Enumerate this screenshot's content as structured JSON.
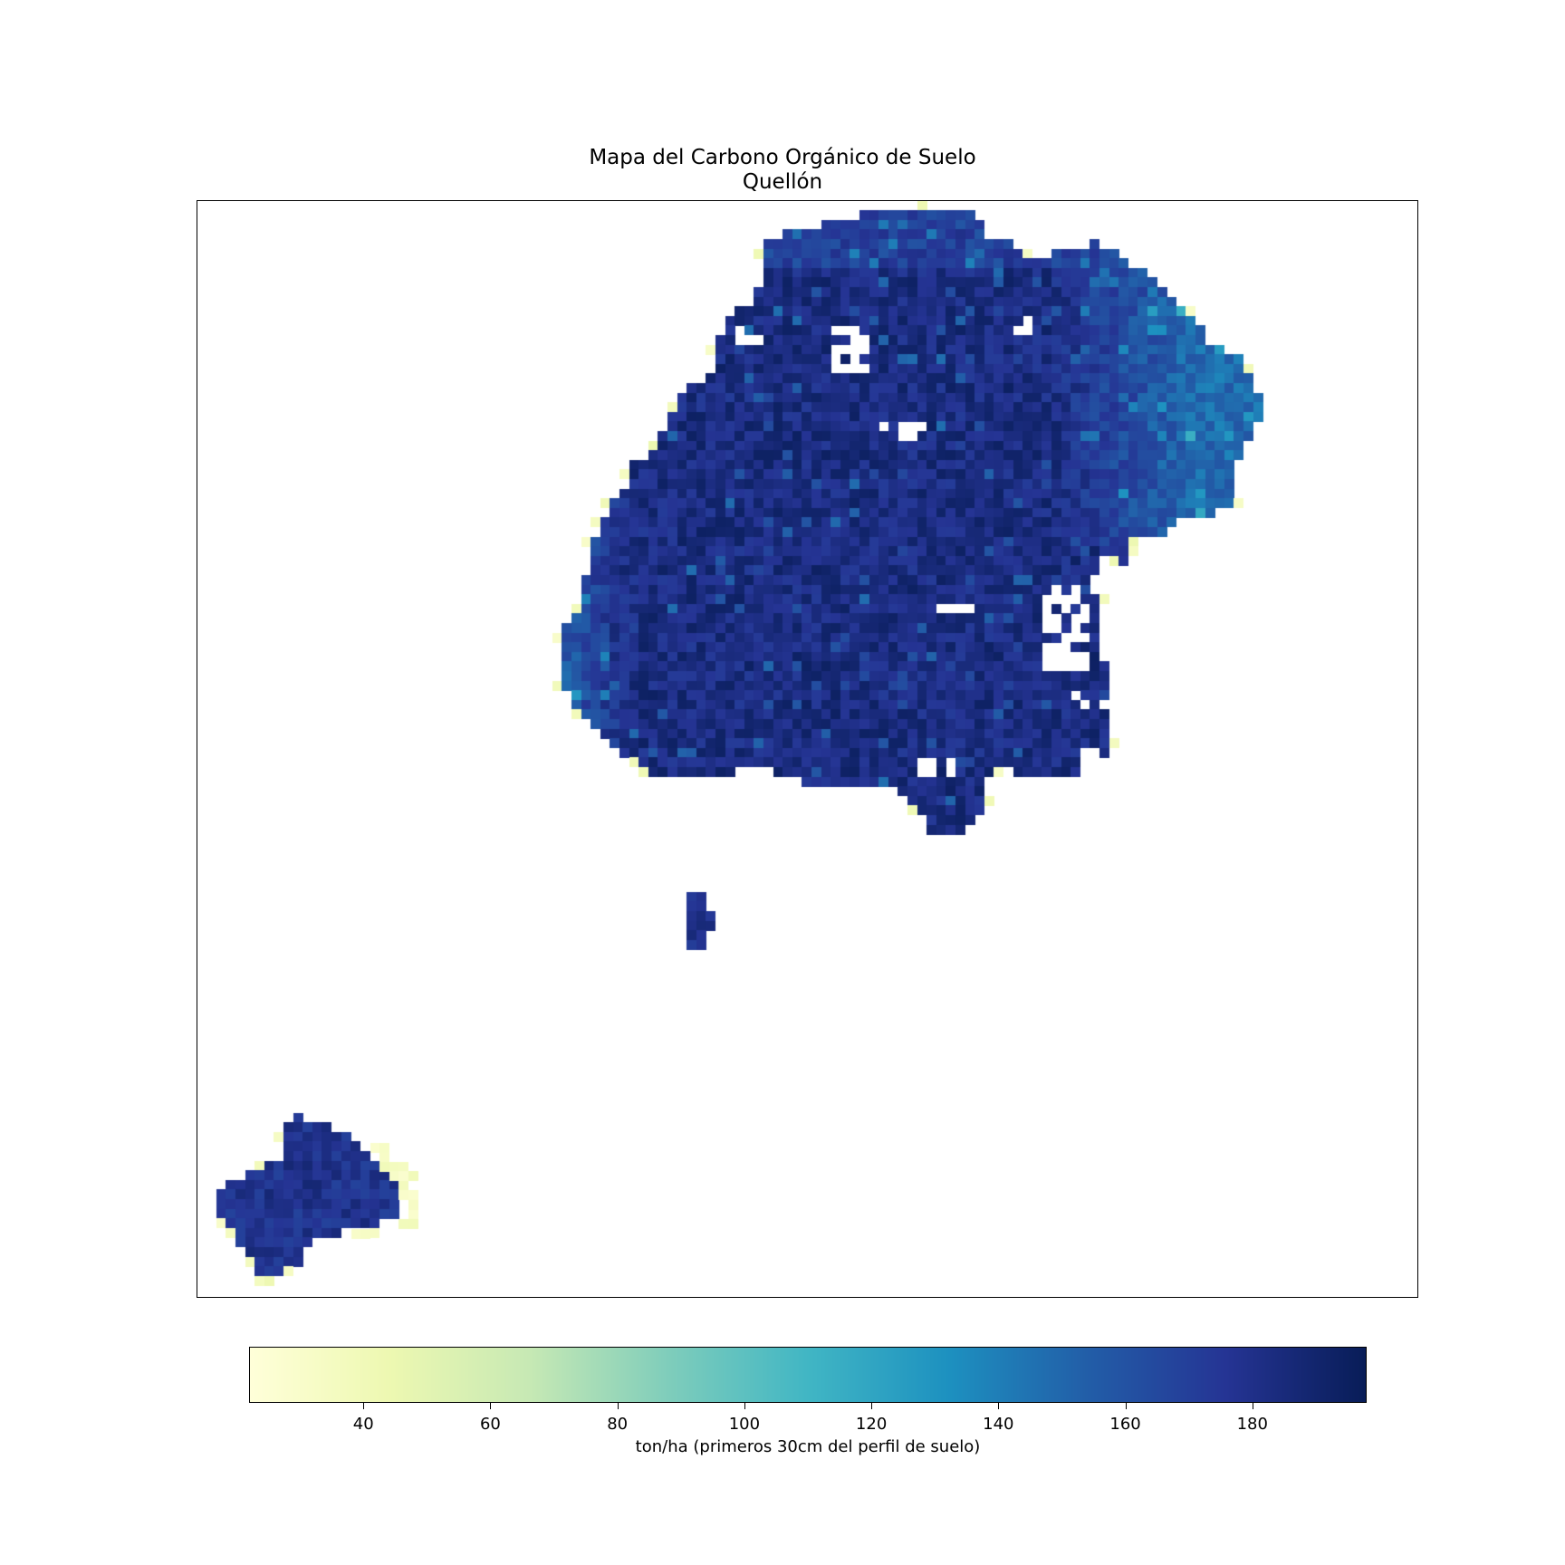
{
  "title": {
    "line1": "Mapa del Carbono Orgánico de Suelo",
    "line2": "Quellón"
  },
  "colorbar": {
    "label": "ton/ha (primeros 30cm del perfil de suelo)",
    "min": 22,
    "max": 198,
    "ticks": [
      40,
      60,
      80,
      100,
      120,
      140,
      160,
      180
    ],
    "colormap": "YlGnBu",
    "stops": [
      "#ffffd9",
      "#edf8b1",
      "#c7e9b4",
      "#7fcdbb",
      "#41b6c4",
      "#1d91c0",
      "#225ea8",
      "#253494",
      "#081d58"
    ]
  },
  "chart_data": {
    "type": "heatmap",
    "title": "Mapa del Carbono Orgánico de Suelo\nQuellón",
    "colorbar_label": "ton/ha (primeros 30cm del perfil de suelo)",
    "value_range": [
      22,
      198
    ],
    "colorbar_ticks": [
      40,
      60,
      80,
      100,
      120,
      140,
      160,
      180
    ],
    "typical_values": {
      "main_island_interior": 180,
      "main_island_west_and_northeast_margins": 150,
      "coastal_edge_cells": 35,
      "southwest_island": 175
    },
    "axes": "off",
    "legend": "colorbar-bottom"
  }
}
